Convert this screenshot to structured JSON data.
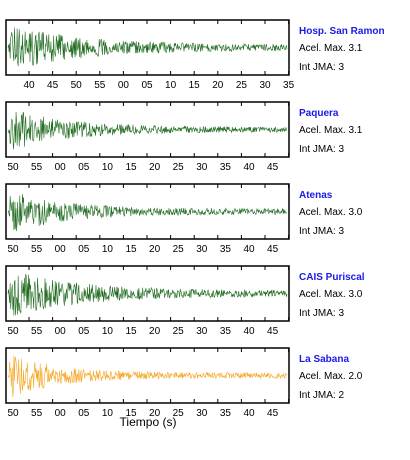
{
  "chart_data": {
    "type": "line",
    "xlabel": "Tiempo (s)",
    "panels": [
      {
        "station": "Hosp. San Ramon",
        "acel": "Acel. Max. 3.1",
        "int": "Int JMA: 3",
        "color": "#1f6b1f",
        "tick_labels": [
          "40",
          "45",
          "50",
          "55",
          "00",
          "05",
          "10",
          "15",
          "20",
          "25",
          "30",
          "35"
        ],
        "peak_amplitude": 1.0,
        "decay": 0.55
      },
      {
        "station": "Paquera",
        "acel": "Acel. Max. 3.1",
        "int": "Int JMA: 3",
        "color": "#1f6b1f",
        "tick_labels": [
          "50",
          "55",
          "00",
          "05",
          "10",
          "15",
          "20",
          "25",
          "30",
          "35",
          "40",
          "45"
        ],
        "peak_amplitude": 0.9,
        "decay": 0.45
      },
      {
        "station": "Atenas",
        "acel": "Acel. Max. 3.0",
        "int": "Int JMA: 3",
        "color": "#1f6b1f",
        "tick_labels": [
          "50",
          "55",
          "00",
          "05",
          "10",
          "15",
          "20",
          "25",
          "30",
          "35",
          "40",
          "45"
        ],
        "peak_amplitude": 1.0,
        "decay": 0.4
      },
      {
        "station": "CAIS Puriscal",
        "acel": "Acel. Max. 3.0",
        "int": "Int JMA: 3",
        "color": "#1f6b1f",
        "tick_labels": [
          "50",
          "55",
          "00",
          "05",
          "10",
          "15",
          "20",
          "25",
          "30",
          "35",
          "40",
          "45"
        ],
        "peak_amplitude": 1.0,
        "decay": 0.55
      },
      {
        "station": "La Sabana",
        "acel": "Acel. Max. 2.0",
        "int": "Int JMA: 2",
        "color": "#f5a623",
        "tick_labels": [
          "50",
          "55",
          "00",
          "05",
          "10",
          "15",
          "20",
          "25",
          "30",
          "35",
          "40",
          "45"
        ],
        "peak_amplitude": 1.0,
        "decay": 0.35
      }
    ]
  }
}
